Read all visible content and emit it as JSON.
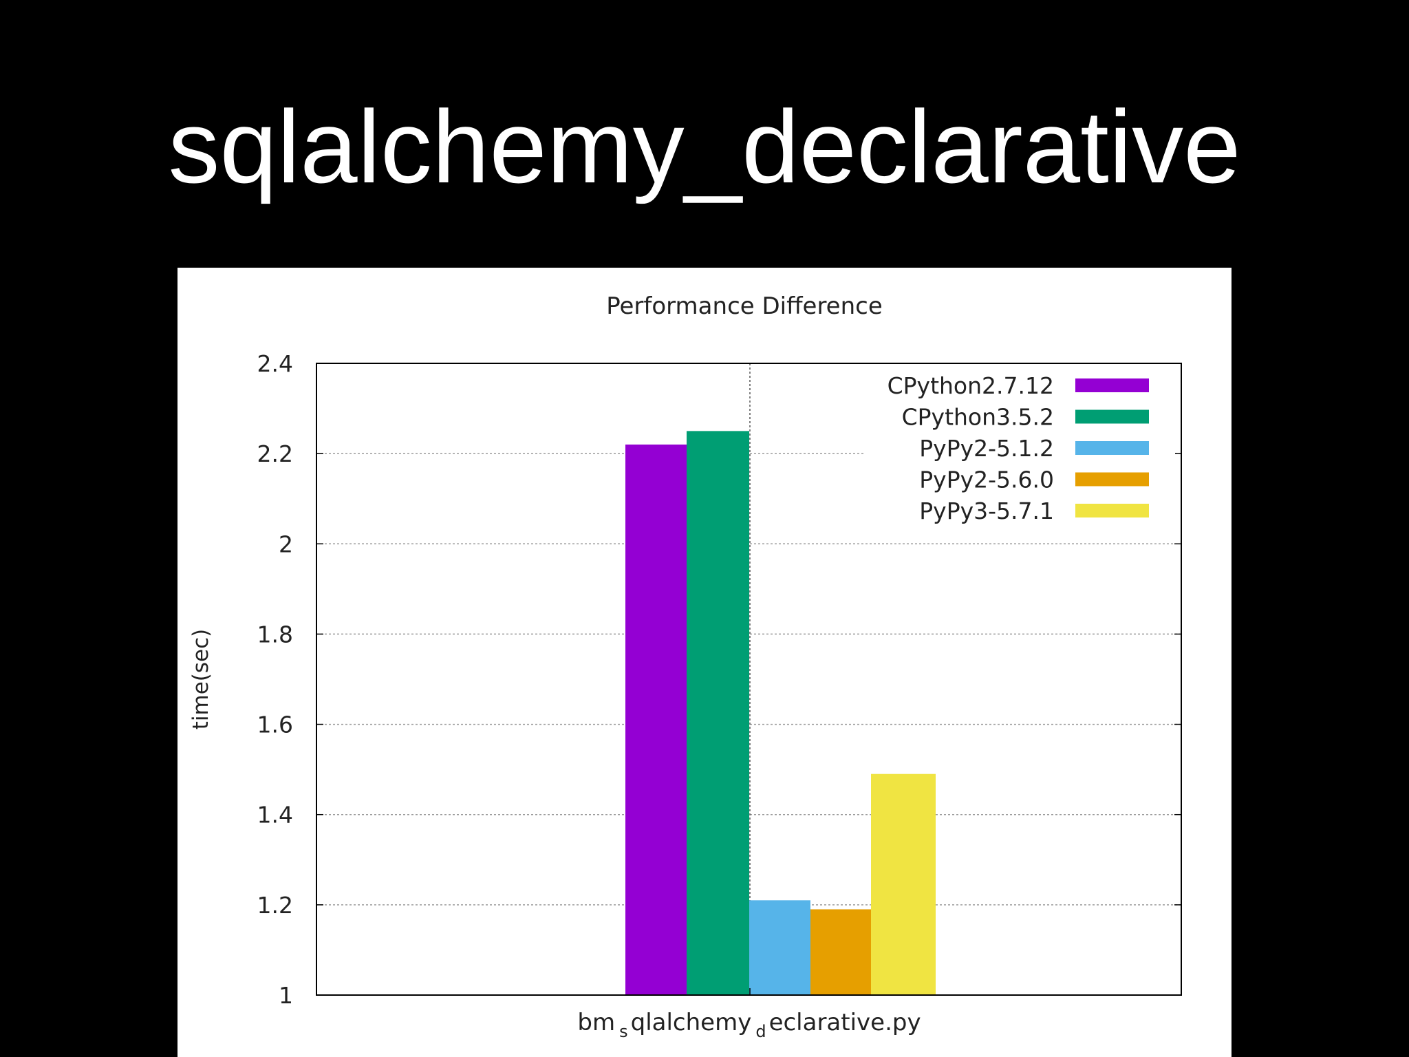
{
  "slide": {
    "title": "sqlalchemy_declarative"
  },
  "chart_data": {
    "type": "bar",
    "title": "Performance Difference",
    "xlabel": "bm_sqlalchemy_declarative.py",
    "xlabel_parts": {
      "prefix": "bm",
      "sub1": "s",
      "middle": "qlalchemy",
      "sub2": "d",
      "suffix": "eclarative.py"
    },
    "ylabel": "time(sec)",
    "ylim": [
      1,
      2.4
    ],
    "yticks": [
      1,
      1.2,
      1.4,
      1.6,
      1.8,
      2,
      2.2,
      2.4
    ],
    "ytick_labels": [
      "1",
      "1.2",
      "1.4",
      "1.6",
      "1.8",
      "2",
      "2.2",
      "2.4"
    ],
    "grid": true,
    "legend_position": "top-right",
    "categories": [
      "bm_sqlalchemy_declarative.py"
    ],
    "series": [
      {
        "name": "CPython2.7.12",
        "values": [
          2.22
        ],
        "color": "#9400d3"
      },
      {
        "name": "CPython3.5.2",
        "values": [
          2.25
        ],
        "color": "#009e73"
      },
      {
        "name": "PyPy2-5.1.2",
        "values": [
          1.21
        ],
        "color": "#56b4e9"
      },
      {
        "name": "PyPy2-5.6.0",
        "values": [
          1.19
        ],
        "color": "#e69f00"
      },
      {
        "name": "PyPy3-5.7.1",
        "values": [
          1.49
        ],
        "color": "#f0e442"
      }
    ]
  }
}
